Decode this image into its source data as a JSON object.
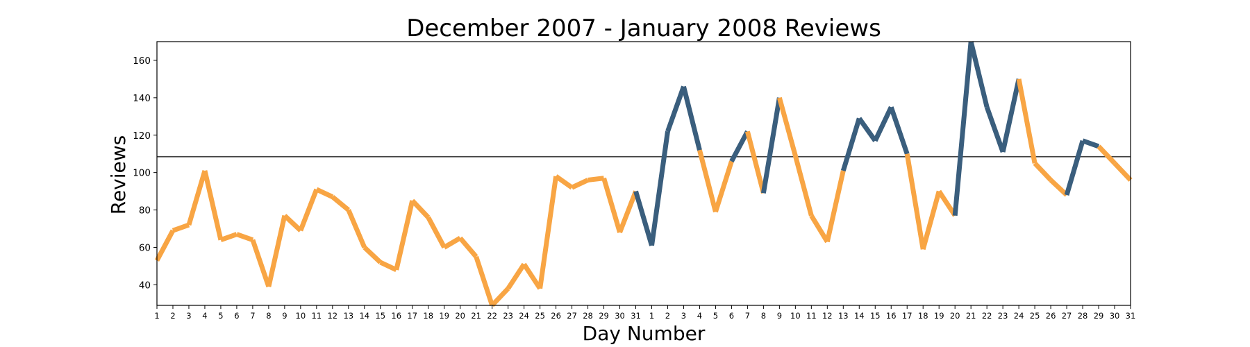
{
  "chart_data": {
    "type": "line",
    "title": "December 2007 - January 2008 Reviews",
    "xlabel": "Day Number",
    "ylabel": "Reviews",
    "ylim": [
      29,
      170
    ],
    "yticks": [
      40,
      60,
      80,
      100,
      120,
      140,
      160
    ],
    "grid": false,
    "legend": "none",
    "colors": {
      "above": "#3a5e7d",
      "below": "#f8a544",
      "reference_line": "#404040",
      "axes": "#000000"
    },
    "reference_line_value": 108.5,
    "x": [
      "1",
      "2",
      "3",
      "4",
      "5",
      "6",
      "7",
      "8",
      "9",
      "10",
      "11",
      "12",
      "13",
      "14",
      "15",
      "16",
      "17",
      "18",
      "19",
      "20",
      "21",
      "22",
      "23",
      "24",
      "25",
      "26",
      "27",
      "28",
      "29",
      "30",
      "31",
      "1",
      "2",
      "3",
      "4",
      "5",
      "6",
      "7",
      "8",
      "9",
      "10",
      "11",
      "12",
      "13",
      "14",
      "15",
      "16",
      "17",
      "18",
      "19",
      "20",
      "21",
      "22",
      "23",
      "24",
      "25",
      "26",
      "27",
      "28",
      "29",
      "30",
      "31"
    ],
    "series": [
      {
        "values": [
          53,
          69,
          72,
          101,
          64,
          67,
          64,
          39,
          77,
          69,
          91,
          87,
          80,
          60,
          52,
          48,
          85,
          76,
          60,
          65,
          55,
          29,
          38,
          51,
          38,
          98,
          92,
          96,
          97,
          68,
          90,
          61,
          122,
          146,
          112,
          79,
          106,
          122,
          89,
          140,
          109,
          77,
          63,
          101,
          129,
          117,
          135,
          110,
          59,
          90,
          77,
          170,
          135,
          111,
          150,
          105,
          96,
          88,
          117,
          114,
          105,
          96
        ],
        "segment_colors": [
          "below",
          "below",
          "below",
          "below",
          "below",
          "below",
          "below",
          "below",
          "below",
          "below",
          "below",
          "below",
          "below",
          "below",
          "below",
          "below",
          "below",
          "below",
          "below",
          "below",
          "below",
          "below",
          "below",
          "below",
          "below",
          "below",
          "below",
          "below",
          "below",
          "below",
          "above",
          "above",
          "above",
          "above",
          "below",
          "below",
          "above",
          "below",
          "above",
          "below",
          "below",
          "below",
          "below",
          "above",
          "above",
          "above",
          "above",
          "below",
          "below",
          "below",
          "above",
          "above",
          "above",
          "above",
          "below",
          "below",
          "below",
          "above",
          "above",
          "below",
          "below"
        ]
      }
    ]
  }
}
